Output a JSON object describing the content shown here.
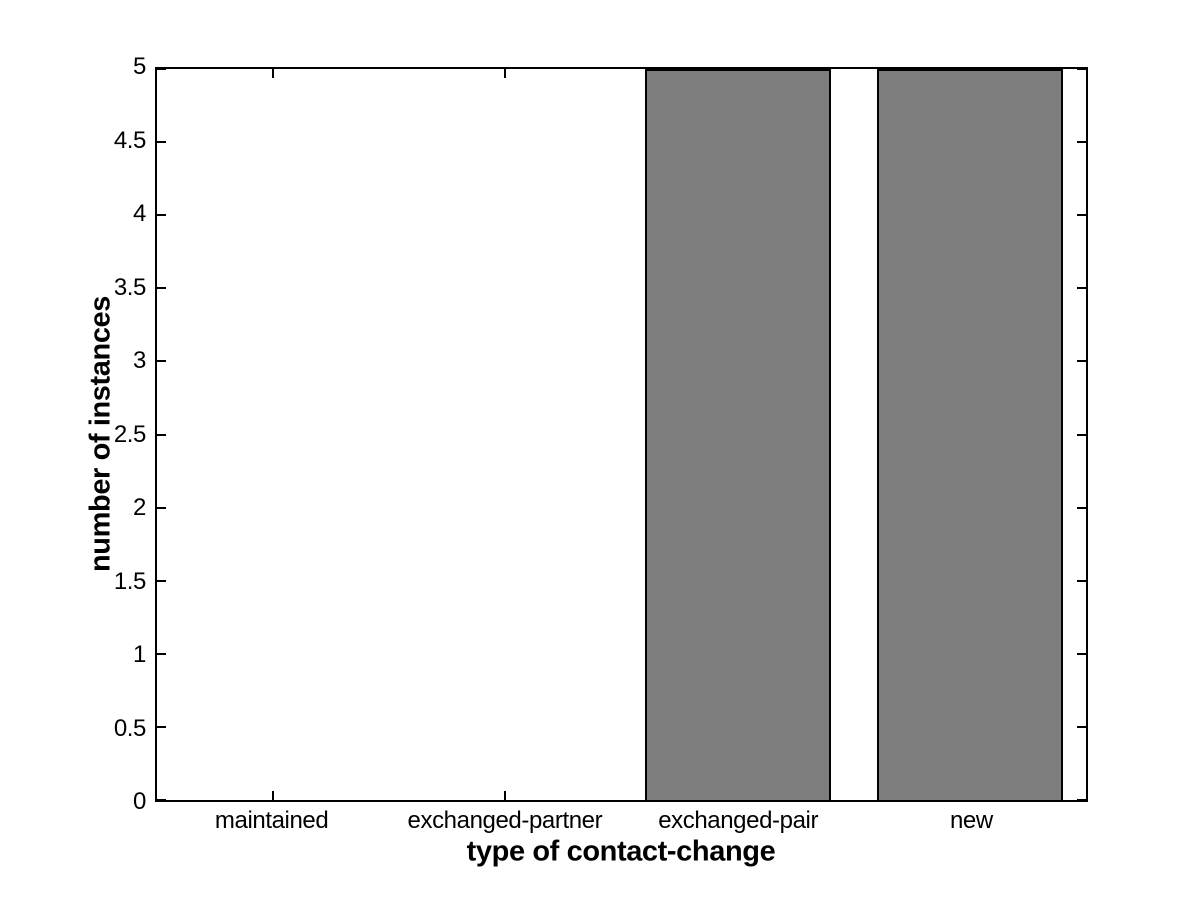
{
  "chart_data": {
    "type": "bar",
    "title": "",
    "xlabel": "type of contact-change",
    "ylabel": "number of instances",
    "categories": [
      "maintained",
      "exchanged-partner",
      "exchanged-pair",
      "new"
    ],
    "values": [
      0,
      0,
      5,
      5
    ],
    "ylim": [
      0,
      5
    ],
    "ytick_step": 0.5,
    "ytick_labels": [
      "0",
      "0.5",
      "1",
      "1.5",
      "2",
      "2.5",
      "3",
      "3.5",
      "4",
      "4.5",
      "5"
    ],
    "bar_width_fraction": 0.8,
    "grid": false,
    "legend_position": "none",
    "colors": {
      "bar_fill": "#7d7d7d",
      "bar_edge": "#000000",
      "axis": "#000000",
      "text": "#000000",
      "background": "#ffffff"
    }
  }
}
